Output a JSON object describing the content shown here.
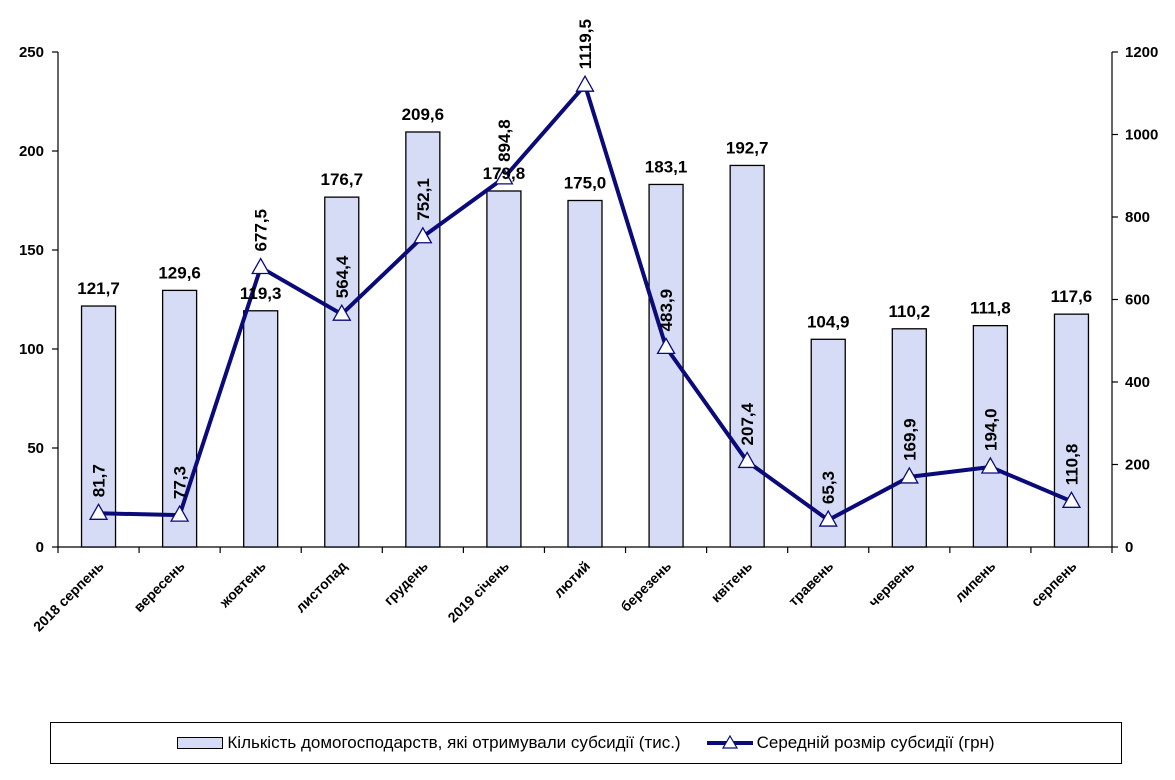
{
  "chart_data": {
    "type": "bar+line",
    "categories": [
      "2018 серпень",
      "вересень",
      "жовтень",
      "листопад",
      "грудень",
      "2019 січень",
      "лютий",
      "березень",
      "квітень",
      "травень",
      "червень",
      "липень",
      "серпень"
    ],
    "series": [
      {
        "name": "Кількість домогосподарств, які отримували субсидії (тис.)",
        "type": "bar",
        "axis": "left",
        "values": [
          121.7,
          129.6,
          119.3,
          176.7,
          209.6,
          179.8,
          175.0,
          183.1,
          192.7,
          104.9,
          110.2,
          111.8,
          117.6
        ],
        "labels": [
          "121,7",
          "129,6",
          "119,3",
          "176,7",
          "209,6",
          "179,8",
          "175,0",
          "183,1",
          "192,7",
          "104,9",
          "110,2",
          "111,8",
          "117,6"
        ],
        "color": "#d6dcf5"
      },
      {
        "name": "Середній розмір субсидії (грн)",
        "type": "line",
        "axis": "right",
        "marker": "triangle",
        "values": [
          81.7,
          77.3,
          677.5,
          564.4,
          752.1,
          894.8,
          1119.5,
          483.9,
          207.4,
          65.3,
          169.9,
          194.0,
          110.8
        ],
        "labels": [
          "81,7",
          "77,3",
          "677,5",
          "564,4",
          "752,1",
          "894,8",
          "1119,5",
          "483,9",
          "207,4",
          "65,3",
          "169,9",
          "194,0",
          "110,8"
        ],
        "color": "#0a0a7a"
      }
    ],
    "y_left": {
      "ylim": [
        0,
        250
      ],
      "ticks": [
        0,
        50,
        100,
        150,
        200,
        250
      ],
      "tick_labels": [
        "0",
        "50",
        "100",
        "150",
        "200",
        "250"
      ]
    },
    "y_right": {
      "ylim": [
        0,
        1200
      ],
      "ticks": [
        0,
        200,
        400,
        600,
        800,
        1000,
        1200
      ],
      "tick_labels": [
        "0",
        "200",
        "400",
        "600",
        "800",
        "1000",
        "1200"
      ]
    },
    "title": "",
    "xlabel": "",
    "grid": false,
    "legend_position": "bottom"
  },
  "legend": {
    "bar_label": "Кількість домогосподарств, які отримували субсидії (тис.)",
    "line_label": "Середній розмір субсидії (грн)"
  }
}
